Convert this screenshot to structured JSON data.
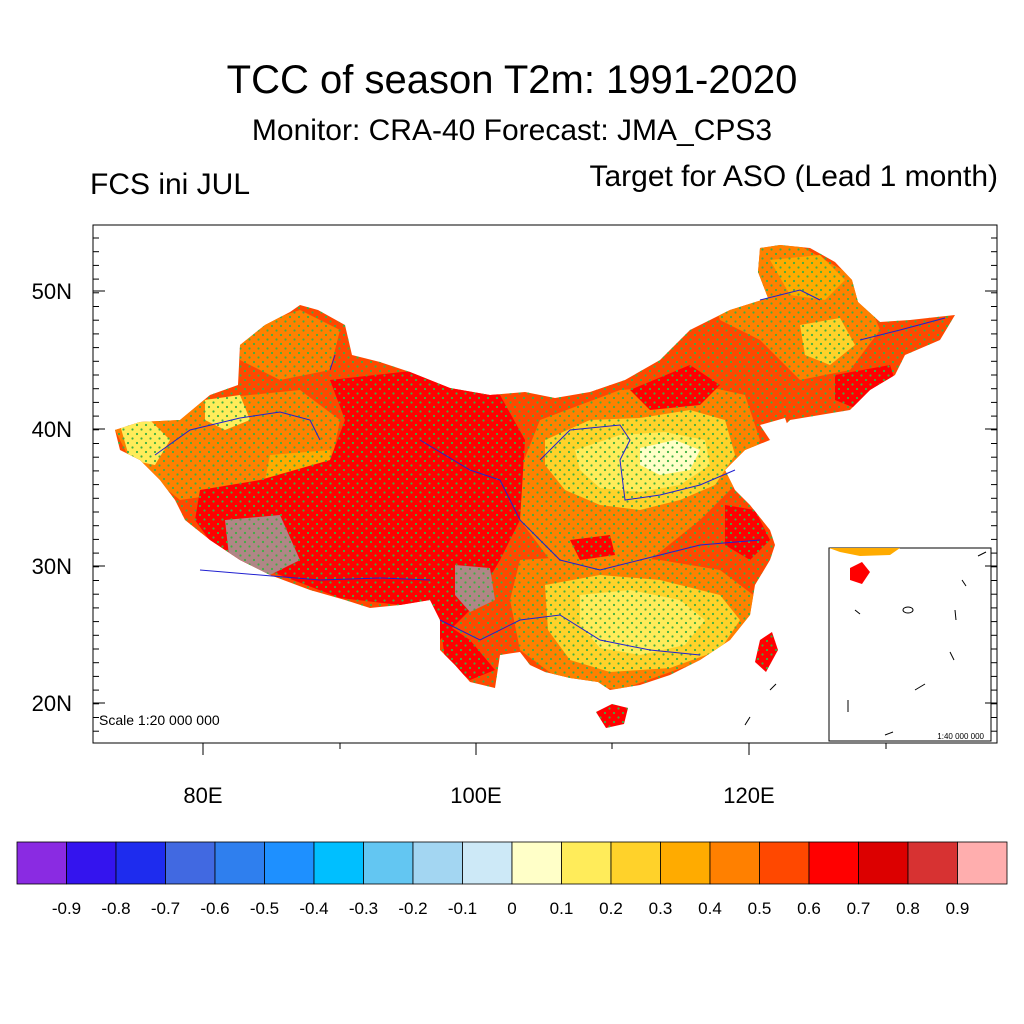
{
  "header": {
    "title": "TCC of season T2m: 1991-2020",
    "subtitle": "Monitor: CRA-40   Forecast: JMA_CPS3",
    "left_label": "FCS ini JUL",
    "right_label": "Target for ASO (Lead 1 month)"
  },
  "map": {
    "scale_main": "Scale 1:20 000 000",
    "scale_inset": "1:40 000 000",
    "lat_labels": [
      "50N",
      "40N",
      "30N",
      "20N"
    ],
    "lon_labels": [
      "80E",
      "100E",
      "120E"
    ],
    "stipple_color": "#3cb043",
    "river_color": "#2020d0"
  },
  "colorbar": {
    "colors": [
      "#8a2be2",
      "#3414ee",
      "#1e2cee",
      "#4169e1",
      "#2f7fee",
      "#1e90ff",
      "#00bfff",
      "#63c6f2",
      "#a3d6f2",
      "#cde9f7",
      "#ffffc8",
      "#ffec5a",
      "#ffd22a",
      "#ffab00",
      "#ff8000",
      "#ff4800",
      "#ff0000",
      "#dc0000",
      "#d73232",
      "#ffaeae"
    ],
    "labels": [
      "-0.9",
      "-0.8",
      "-0.7",
      "-0.6",
      "-0.5",
      "-0.4",
      "-0.3",
      "-0.2",
      "-0.1",
      "0",
      "0.1",
      "0.2",
      "0.3",
      "0.4",
      "0.5",
      "0.6",
      "0.7",
      "0.8",
      "0.9"
    ]
  }
}
